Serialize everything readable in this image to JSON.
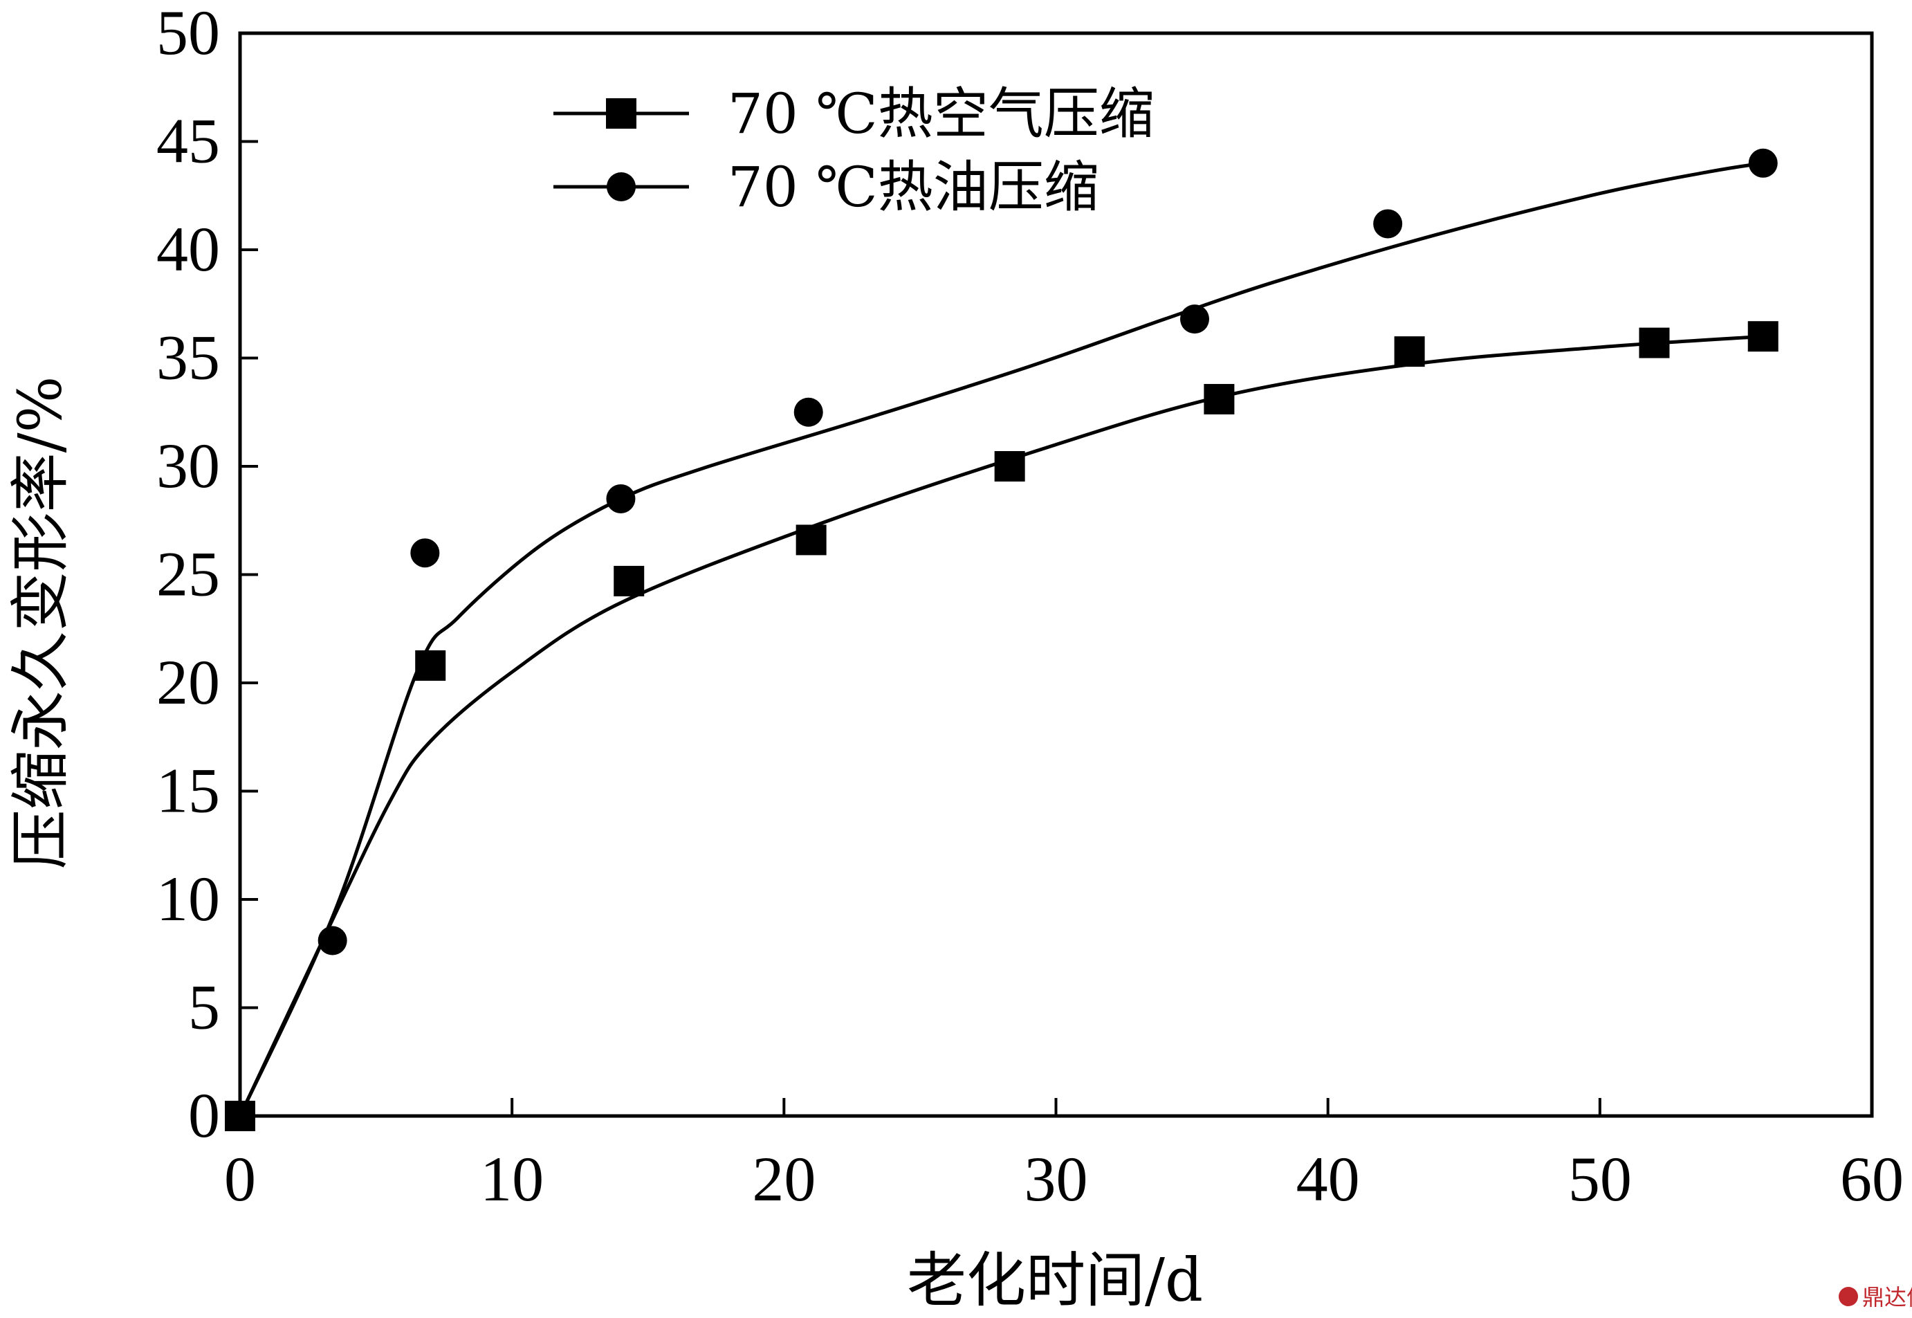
{
  "chart_data": {
    "type": "line",
    "title": "",
    "xlabel": "老化时间/d",
    "ylabel": "压缩永久变形率/%",
    "xlim": [
      0,
      60
    ],
    "ylim": [
      0,
      50
    ],
    "xticks": [
      "0",
      "10",
      "20",
      "30",
      "40",
      "50",
      "60"
    ],
    "yticks": [
      "0",
      "5",
      "10",
      "15",
      "20",
      "25",
      "30",
      "35",
      "40",
      "45",
      "50"
    ],
    "grid": false,
    "legend_position": "top-left",
    "series": [
      {
        "name": "70 ℃热空气压缩",
        "marker": "square",
        "color": "#000000",
        "points": [
          [
            0,
            0
          ],
          [
            7,
            20.8
          ],
          [
            14.3,
            24.7
          ],
          [
            21,
            26.6
          ],
          [
            28.3,
            30.0
          ],
          [
            36,
            33.1
          ],
          [
            43,
            35.3
          ],
          [
            52,
            35.7
          ],
          [
            56,
            36.0
          ]
        ],
        "fit": [
          [
            0,
            0
          ],
          [
            3,
            8
          ],
          [
            5.5,
            14.5
          ],
          [
            7,
            17.3
          ],
          [
            10,
            20.5
          ],
          [
            14,
            23.7
          ],
          [
            21,
            27.2
          ],
          [
            29,
            30.6
          ],
          [
            36,
            33.2
          ],
          [
            43,
            34.7
          ],
          [
            50,
            35.5
          ],
          [
            56,
            36.0
          ]
        ]
      },
      {
        "name": "70 ℃热油压缩",
        "marker": "circle",
        "color": "#000000",
        "points": [
          [
            0,
            0
          ],
          [
            3.4,
            8.1
          ],
          [
            6.8,
            26.0
          ],
          [
            14,
            28.5
          ],
          [
            20.9,
            32.5
          ],
          [
            35.1,
            36.8
          ],
          [
            42.2,
            41.2
          ],
          [
            56,
            44.0
          ]
        ],
        "fit": [
          [
            0,
            0
          ],
          [
            3.5,
            9.5
          ],
          [
            6.5,
            20.5
          ],
          [
            8,
            23
          ],
          [
            11,
            26.3
          ],
          [
            14,
            28.5
          ],
          [
            17,
            29.9
          ],
          [
            23,
            32.2
          ],
          [
            29,
            34.6
          ],
          [
            34,
            36.8
          ],
          [
            38,
            38.5
          ],
          [
            44,
            40.7
          ],
          [
            50,
            42.6
          ],
          [
            54,
            43.6
          ],
          [
            56,
            44.0
          ]
        ]
      }
    ]
  },
  "watermark": "鼎达信"
}
